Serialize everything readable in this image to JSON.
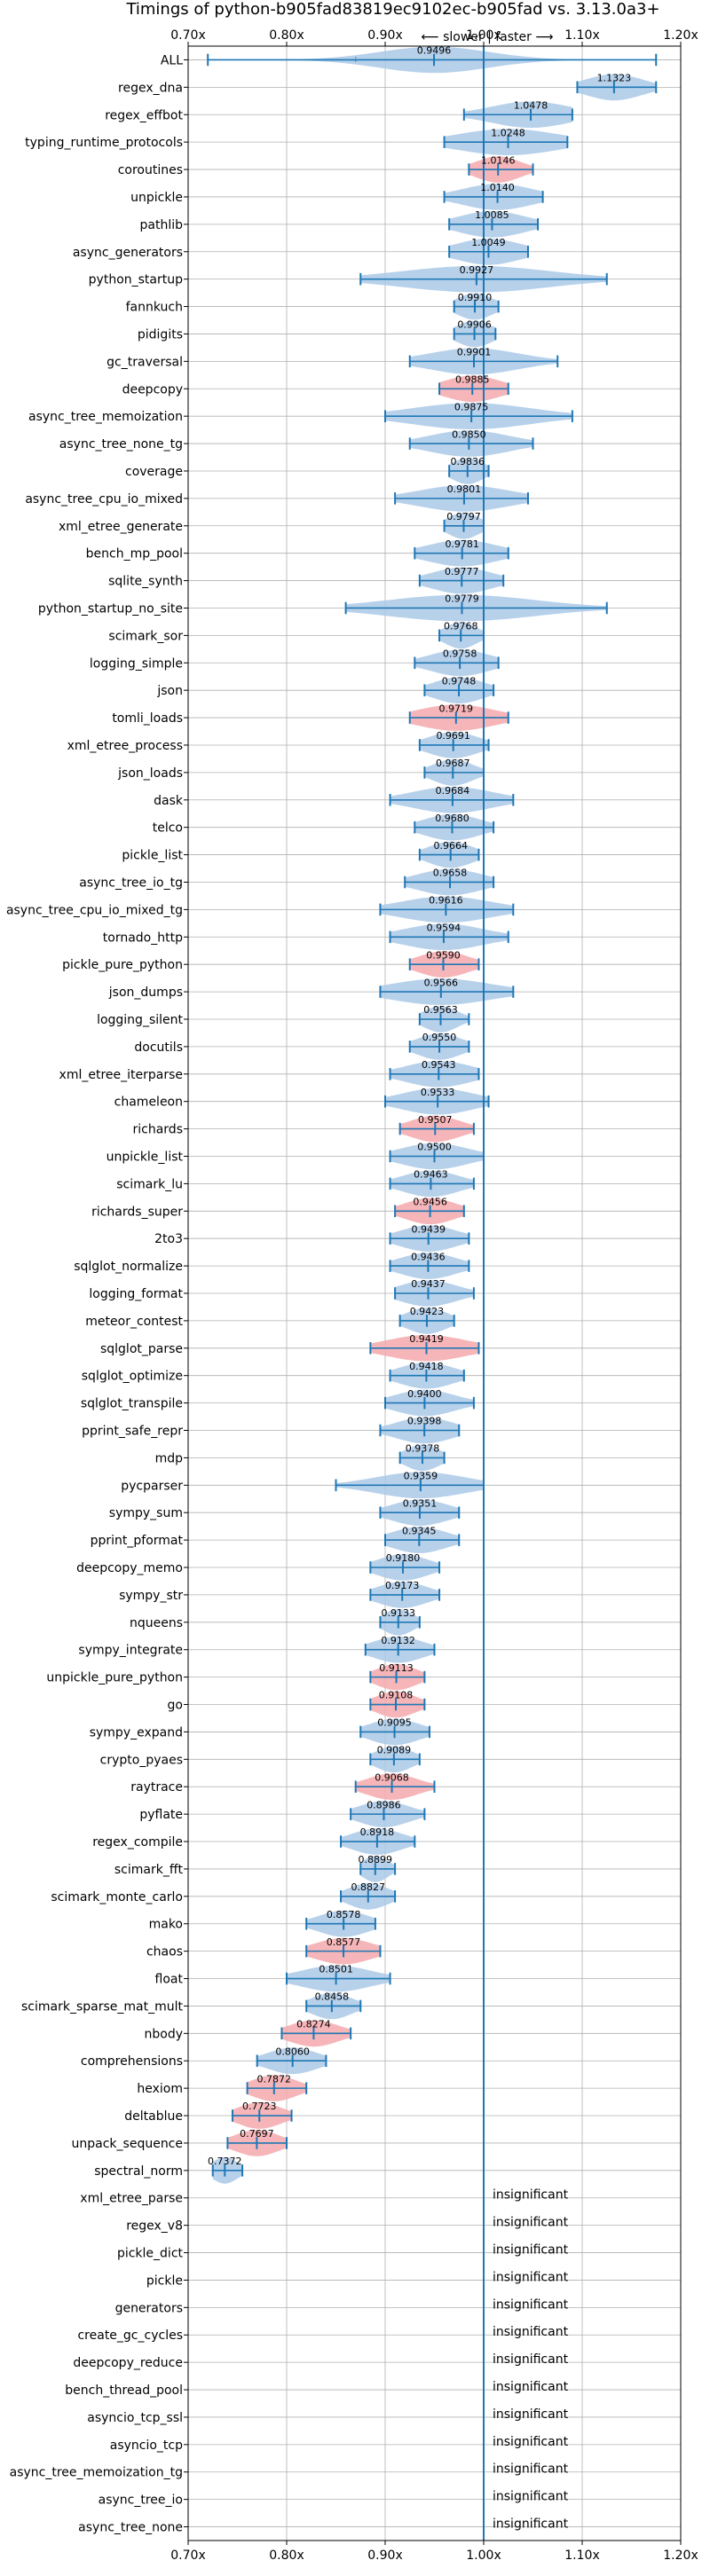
{
  "chart_data": {
    "type": "violin",
    "title": "Timings of python-b905fad83819ec9102ec-b905fad vs. 3.13.0a3+",
    "annotation": "⟵ slower | faster ⟶",
    "xlim": [
      0.7,
      1.2
    ],
    "x_ticks": [
      0.7,
      0.8,
      0.9,
      1.0,
      1.1,
      1.2
    ],
    "x_tick_labels": [
      "0.70x",
      "0.80x",
      "0.90x",
      "1.00x",
      "1.10x",
      "1.20x"
    ],
    "reference_line": 1.0,
    "grid": true,
    "colors": {
      "faster": "#aac9e8",
      "slower": "#f5a9ad",
      "marker": "#1f77b4",
      "grid": "#b0b0b0"
    },
    "insignificant_label": "insignificant",
    "benchmarks": [
      {
        "name": "ALL",
        "value": 0.9496,
        "label": "0.9496",
        "lo": 0.72,
        "hi": 1.175,
        "q1": 0.87,
        "q3": 1.0,
        "spread": 0.055,
        "slower": false
      },
      {
        "name": "regex_dna",
        "value": 1.1323,
        "label": "1.1323",
        "lo": 1.095,
        "hi": 1.175,
        "spread": 0.028,
        "slower": false
      },
      {
        "name": "regex_effbot",
        "value": 1.0478,
        "label": "1.0478",
        "lo": 0.98,
        "hi": 1.09,
        "spread": 0.04,
        "slower": false
      },
      {
        "name": "typing_runtime_protocols",
        "value": 1.0248,
        "label": "1.0248",
        "lo": 0.96,
        "hi": 1.085,
        "spread": 0.05,
        "slower": false
      },
      {
        "name": "coroutines",
        "value": 1.0146,
        "label": "1.0146",
        "lo": 0.985,
        "hi": 1.05,
        "spread": 0.022,
        "slower": true
      },
      {
        "name": "unpickle",
        "value": 1.014,
        "label": "1.0140",
        "lo": 0.96,
        "hi": 1.06,
        "spread": 0.035,
        "slower": false
      },
      {
        "name": "pathlib",
        "value": 1.0085,
        "label": "1.0085",
        "lo": 0.965,
        "hi": 1.055,
        "spread": 0.033,
        "slower": false
      },
      {
        "name": "async_generators",
        "value": 1.0049,
        "label": "1.0049",
        "lo": 0.965,
        "hi": 1.045,
        "spread": 0.032,
        "slower": false
      },
      {
        "name": "python_startup",
        "value": 0.9927,
        "label": "0.9927",
        "lo": 0.875,
        "hi": 1.125,
        "spread": 0.075,
        "slower": false
      },
      {
        "name": "fannkuch",
        "value": 0.991,
        "label": "0.9910",
        "lo": 0.97,
        "hi": 1.015,
        "spread": 0.018,
        "slower": false
      },
      {
        "name": "pidigits",
        "value": 0.9906,
        "label": "0.9906",
        "lo": 0.97,
        "hi": 1.012,
        "spread": 0.018,
        "slower": false
      },
      {
        "name": "gc_traversal",
        "value": 0.9901,
        "label": "0.9901",
        "lo": 0.925,
        "hi": 1.075,
        "spread": 0.045,
        "slower": false
      },
      {
        "name": "deepcopy",
        "value": 0.9885,
        "label": "0.9885",
        "lo": 0.955,
        "hi": 1.025,
        "spread": 0.028,
        "slower": true
      },
      {
        "name": "async_tree_memoization",
        "value": 0.9875,
        "label": "0.9875",
        "lo": 0.9,
        "hi": 1.09,
        "spread": 0.06,
        "slower": false
      },
      {
        "name": "async_tree_none_tg",
        "value": 0.985,
        "label": "0.9850",
        "lo": 0.925,
        "hi": 1.05,
        "spread": 0.04,
        "slower": false
      },
      {
        "name": "coverage",
        "value": 0.9836,
        "label": "0.9836",
        "lo": 0.965,
        "hi": 1.005,
        "spread": 0.016,
        "slower": false
      },
      {
        "name": "async_tree_cpu_io_mixed",
        "value": 0.9801,
        "label": "0.9801",
        "lo": 0.91,
        "hi": 1.045,
        "spread": 0.045,
        "slower": false
      },
      {
        "name": "xml_etree_generate",
        "value": 0.9797,
        "label": "0.9797",
        "lo": 0.96,
        "hi": 1.0,
        "spread": 0.016,
        "slower": false
      },
      {
        "name": "bench_mp_pool",
        "value": 0.9781,
        "label": "0.9781",
        "lo": 0.93,
        "hi": 1.025,
        "spread": 0.035,
        "slower": false
      },
      {
        "name": "sqlite_synth",
        "value": 0.9777,
        "label": "0.9777",
        "lo": 0.935,
        "hi": 1.02,
        "spread": 0.03,
        "slower": false
      },
      {
        "name": "python_startup_no_site",
        "value": 0.9779,
        "label": "0.9779",
        "lo": 0.86,
        "hi": 1.125,
        "spread": 0.075,
        "slower": false
      },
      {
        "name": "scimark_sor",
        "value": 0.9768,
        "label": "0.9768",
        "lo": 0.955,
        "hi": 1.0,
        "spread": 0.016,
        "slower": false
      },
      {
        "name": "logging_simple",
        "value": 0.9758,
        "label": "0.9758",
        "lo": 0.93,
        "hi": 1.015,
        "spread": 0.03,
        "slower": false
      },
      {
        "name": "json",
        "value": 0.9748,
        "label": "0.9748",
        "lo": 0.94,
        "hi": 1.01,
        "spread": 0.025,
        "slower": false
      },
      {
        "name": "tomli_loads",
        "value": 0.9719,
        "label": "0.9719",
        "lo": 0.925,
        "hi": 1.025,
        "spread": 0.038,
        "slower": true
      },
      {
        "name": "xml_etree_process",
        "value": 0.9691,
        "label": "0.9691",
        "lo": 0.935,
        "hi": 1.005,
        "spread": 0.025,
        "slower": false
      },
      {
        "name": "json_loads",
        "value": 0.9687,
        "label": "0.9687",
        "lo": 0.94,
        "hi": 1.0,
        "spread": 0.02,
        "slower": false
      },
      {
        "name": "dask",
        "value": 0.9684,
        "label": "0.9684",
        "lo": 0.905,
        "hi": 1.03,
        "spread": 0.04,
        "slower": false
      },
      {
        "name": "telco",
        "value": 0.968,
        "label": "0.9680",
        "lo": 0.93,
        "hi": 1.01,
        "spread": 0.028,
        "slower": false
      },
      {
        "name": "pickle_list",
        "value": 0.9664,
        "label": "0.9664",
        "lo": 0.935,
        "hi": 0.995,
        "spread": 0.022,
        "slower": false
      },
      {
        "name": "async_tree_io_tg",
        "value": 0.9658,
        "label": "0.9658",
        "lo": 0.92,
        "hi": 1.01,
        "spread": 0.032,
        "slower": false
      },
      {
        "name": "async_tree_cpu_io_mixed_tg",
        "value": 0.9616,
        "label": "0.9616",
        "lo": 0.895,
        "hi": 1.03,
        "spread": 0.045,
        "slower": false
      },
      {
        "name": "tornado_http",
        "value": 0.9594,
        "label": "0.9594",
        "lo": 0.905,
        "hi": 1.025,
        "spread": 0.04,
        "slower": false
      },
      {
        "name": "pickle_pure_python",
        "value": 0.959,
        "label": "0.9590",
        "lo": 0.925,
        "hi": 0.995,
        "spread": 0.025,
        "slower": true
      },
      {
        "name": "json_dumps",
        "value": 0.9566,
        "label": "0.9566",
        "lo": 0.895,
        "hi": 1.03,
        "spread": 0.05,
        "slower": false
      },
      {
        "name": "logging_silent",
        "value": 0.9563,
        "label": "0.9563",
        "lo": 0.935,
        "hi": 0.985,
        "spread": 0.017,
        "slower": false
      },
      {
        "name": "docutils",
        "value": 0.955,
        "label": "0.9550",
        "lo": 0.925,
        "hi": 0.985,
        "spread": 0.022,
        "slower": false
      },
      {
        "name": "xml_etree_iterparse",
        "value": 0.9543,
        "label": "0.9543",
        "lo": 0.905,
        "hi": 0.995,
        "spread": 0.033,
        "slower": false
      },
      {
        "name": "chameleon",
        "value": 0.9533,
        "label": "0.9533",
        "lo": 0.9,
        "hi": 1.005,
        "spread": 0.036,
        "slower": false
      },
      {
        "name": "richards",
        "value": 0.9507,
        "label": "0.9507",
        "lo": 0.915,
        "hi": 0.99,
        "spread": 0.025,
        "slower": true
      },
      {
        "name": "unpickle_list",
        "value": 0.95,
        "label": "0.9500",
        "lo": 0.905,
        "hi": 1.0,
        "spread": 0.033,
        "slower": false
      },
      {
        "name": "scimark_lu",
        "value": 0.9463,
        "label": "0.9463",
        "lo": 0.905,
        "hi": 0.99,
        "spread": 0.028,
        "slower": false
      },
      {
        "name": "richards_super",
        "value": 0.9456,
        "label": "0.9456",
        "lo": 0.91,
        "hi": 0.98,
        "spread": 0.025,
        "slower": true
      },
      {
        "name": "2to3",
        "value": 0.9439,
        "label": "0.9439",
        "lo": 0.905,
        "hi": 0.985,
        "spread": 0.028,
        "slower": false
      },
      {
        "name": "sqlglot_normalize",
        "value": 0.9436,
        "label": "0.9436",
        "lo": 0.905,
        "hi": 0.985,
        "spread": 0.028,
        "slower": false
      },
      {
        "name": "logging_format",
        "value": 0.9437,
        "label": "0.9437",
        "lo": 0.91,
        "hi": 0.99,
        "spread": 0.028,
        "slower": false
      },
      {
        "name": "meteor_contest",
        "value": 0.9423,
        "label": "0.9423",
        "lo": 0.915,
        "hi": 0.97,
        "spread": 0.02,
        "slower": false
      },
      {
        "name": "sqlglot_parse",
        "value": 0.9419,
        "label": "0.9419",
        "lo": 0.885,
        "hi": 0.995,
        "spread": 0.04,
        "slower": true
      },
      {
        "name": "sqlglot_optimize",
        "value": 0.9418,
        "label": "0.9418",
        "lo": 0.905,
        "hi": 0.98,
        "spread": 0.027,
        "slower": false
      },
      {
        "name": "sqlglot_transpile",
        "value": 0.94,
        "label": "0.9400",
        "lo": 0.9,
        "hi": 0.99,
        "spread": 0.03,
        "slower": false
      },
      {
        "name": "pprint_safe_repr",
        "value": 0.9398,
        "label": "0.9398",
        "lo": 0.895,
        "hi": 0.975,
        "spread": 0.028,
        "slower": false
      },
      {
        "name": "mdp",
        "value": 0.9378,
        "label": "0.9378",
        "lo": 0.915,
        "hi": 0.96,
        "spread": 0.017,
        "slower": false
      },
      {
        "name": "pycparser",
        "value": 0.9359,
        "label": "0.9359",
        "lo": 0.85,
        "hi": 1.0,
        "spread": 0.045,
        "slower": false
      },
      {
        "name": "sympy_sum",
        "value": 0.9351,
        "label": "0.9351",
        "lo": 0.895,
        "hi": 0.975,
        "spread": 0.028,
        "slower": false
      },
      {
        "name": "pprint_pformat",
        "value": 0.9345,
        "label": "0.9345",
        "lo": 0.9,
        "hi": 0.975,
        "spread": 0.027,
        "slower": false
      },
      {
        "name": "deepcopy_memo",
        "value": 0.918,
        "label": "0.9180",
        "lo": 0.885,
        "hi": 0.955,
        "spread": 0.025,
        "slower": false
      },
      {
        "name": "sympy_str",
        "value": 0.9173,
        "label": "0.9173",
        "lo": 0.885,
        "hi": 0.955,
        "spread": 0.025,
        "slower": false
      },
      {
        "name": "nqueens",
        "value": 0.9133,
        "label": "0.9133",
        "lo": 0.895,
        "hi": 0.935,
        "spread": 0.015,
        "slower": false
      },
      {
        "name": "sympy_integrate",
        "value": 0.9132,
        "label": "0.9132",
        "lo": 0.88,
        "hi": 0.95,
        "spread": 0.025,
        "slower": false
      },
      {
        "name": "unpickle_pure_python",
        "value": 0.9113,
        "label": "0.9113",
        "lo": 0.885,
        "hi": 0.94,
        "spread": 0.02,
        "slower": true
      },
      {
        "name": "go",
        "value": 0.9108,
        "label": "0.9108",
        "lo": 0.885,
        "hi": 0.94,
        "spread": 0.02,
        "slower": true
      },
      {
        "name": "sympy_expand",
        "value": 0.9095,
        "label": "0.9095",
        "lo": 0.875,
        "hi": 0.945,
        "spread": 0.025,
        "slower": false
      },
      {
        "name": "crypto_pyaes",
        "value": 0.9089,
        "label": "0.9089",
        "lo": 0.885,
        "hi": 0.935,
        "spread": 0.018,
        "slower": false
      },
      {
        "name": "raytrace",
        "value": 0.9068,
        "label": "0.9068",
        "lo": 0.87,
        "hi": 0.95,
        "spread": 0.025,
        "slower": true
      },
      {
        "name": "pyflate",
        "value": 0.8986,
        "label": "0.8986",
        "lo": 0.865,
        "hi": 0.94,
        "spread": 0.025,
        "slower": false
      },
      {
        "name": "regex_compile",
        "value": 0.8918,
        "label": "0.8918",
        "lo": 0.855,
        "hi": 0.93,
        "spread": 0.025,
        "slower": false
      },
      {
        "name": "scimark_fft",
        "value": 0.8899,
        "label": "0.8899",
        "lo": 0.875,
        "hi": 0.91,
        "spread": 0.013,
        "slower": false
      },
      {
        "name": "scimark_monte_carlo",
        "value": 0.8827,
        "label": "0.8827",
        "lo": 0.855,
        "hi": 0.91,
        "spread": 0.02,
        "slower": false
      },
      {
        "name": "mako",
        "value": 0.8578,
        "label": "0.8578",
        "lo": 0.82,
        "hi": 0.89,
        "spread": 0.025,
        "slower": false
      },
      {
        "name": "chaos",
        "value": 0.8577,
        "label": "0.8577",
        "lo": 0.82,
        "hi": 0.895,
        "spread": 0.028,
        "slower": true
      },
      {
        "name": "float",
        "value": 0.8501,
        "label": "0.8501",
        "lo": 0.8,
        "hi": 0.905,
        "spread": 0.035,
        "slower": false
      },
      {
        "name": "scimark_sparse_mat_mult",
        "value": 0.8458,
        "label": "0.8458",
        "lo": 0.82,
        "hi": 0.875,
        "spread": 0.02,
        "slower": false
      },
      {
        "name": "nbody",
        "value": 0.8274,
        "label": "0.8274",
        "lo": 0.795,
        "hi": 0.865,
        "spread": 0.025,
        "slower": true
      },
      {
        "name": "comprehensions",
        "value": 0.806,
        "label": "0.8060",
        "lo": 0.77,
        "hi": 0.84,
        "spread": 0.025,
        "slower": false
      },
      {
        "name": "hexiom",
        "value": 0.7872,
        "label": "0.7872",
        "lo": 0.76,
        "hi": 0.82,
        "spread": 0.022,
        "slower": true
      },
      {
        "name": "deltablue",
        "value": 0.7723,
        "label": "0.7723",
        "lo": 0.745,
        "hi": 0.805,
        "spread": 0.022,
        "slower": true
      },
      {
        "name": "unpack_sequence",
        "value": 0.7697,
        "label": "0.7697",
        "lo": 0.74,
        "hi": 0.8,
        "spread": 0.022,
        "slower": true
      },
      {
        "name": "spectral_norm",
        "value": 0.7372,
        "label": "0.7372",
        "lo": 0.725,
        "hi": 0.755,
        "spread": 0.013,
        "slower": false
      },
      {
        "name": "xml_etree_parse",
        "insignificant": true
      },
      {
        "name": "regex_v8",
        "insignificant": true
      },
      {
        "name": "pickle_dict",
        "insignificant": true
      },
      {
        "name": "pickle",
        "insignificant": true
      },
      {
        "name": "generators",
        "insignificant": true
      },
      {
        "name": "create_gc_cycles",
        "insignificant": true
      },
      {
        "name": "deepcopy_reduce",
        "insignificant": true
      },
      {
        "name": "bench_thread_pool",
        "insignificant": true
      },
      {
        "name": "asyncio_tcp_ssl",
        "insignificant": true
      },
      {
        "name": "asyncio_tcp",
        "insignificant": true
      },
      {
        "name": "async_tree_memoization_tg",
        "insignificant": true
      },
      {
        "name": "async_tree_io",
        "insignificant": true
      },
      {
        "name": "async_tree_none",
        "insignificant": true
      }
    ]
  }
}
